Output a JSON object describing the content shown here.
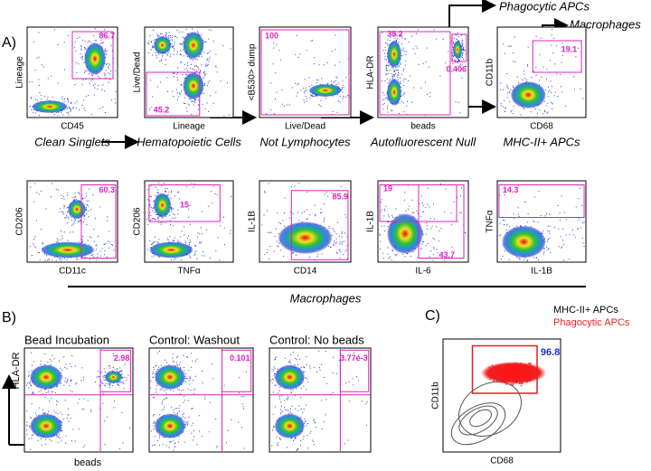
{
  "panel_labels": [
    "A)",
    "B)",
    "C)"
  ],
  "row1": [
    {
      "x_label": "CD45",
      "y_label": "Lineage",
      "gates": [
        "86.7"
      ],
      "caption": "Clean Singlets"
    },
    {
      "x_label": "Lineage",
      "y_label": "Live/Dead",
      "gates": [
        "45.2"
      ],
      "caption": "Hematopoietic Cells"
    },
    {
      "x_label": "Live/Dead",
      "y_label": "<B530> dump",
      "gates": [
        "100"
      ],
      "caption": "Not Lymphocytes"
    },
    {
      "x_label": "beads",
      "y_label": "HLA-DR",
      "gates": [
        "38.2",
        "0.406"
      ],
      "caption": "Autofluorescent Null"
    },
    {
      "x_label": "CD68",
      "y_label": "CD11b",
      "gates": [
        "19.1"
      ],
      "caption": "MHC-II+ APCs"
    }
  ],
  "branch_labels": [
    "Phagocytic APCs",
    "Macrophages"
  ],
  "row2": [
    {
      "x_label": "CD11c",
      "y_label": "CD206",
      "gates": [
        "60.3"
      ]
    },
    {
      "x_label": "TNFα",
      "y_label": "CD206",
      "gates": [
        "15"
      ]
    },
    {
      "x_label": "CD14",
      "y_label": "IL-1B",
      "gates": [
        "85.9"
      ]
    },
    {
      "x_label": "IL-6",
      "y_label": "IL-1B",
      "gates": [
        "19",
        "43.7"
      ]
    },
    {
      "x_label": "IL-1B",
      "y_label": "TNFα",
      "gates": [
        "14.3"
      ]
    }
  ],
  "row2_caption": "Macrophages",
  "panel_b": {
    "y_label": "HLA-DR",
    "x_label": "beads",
    "plots": [
      {
        "title": "Bead Incubation",
        "gate": "2.98"
      },
      {
        "title": "Control: Washout",
        "gate": "0.101"
      },
      {
        "title": "Control: No beads",
        "gate": "3.77e-3"
      }
    ]
  },
  "panel_c": {
    "legend": [
      "MHC-II+ APCs",
      "Phagocytic APCs"
    ],
    "gate": "96.8",
    "y_label": "CD11b",
    "x_label": "CD68"
  }
}
